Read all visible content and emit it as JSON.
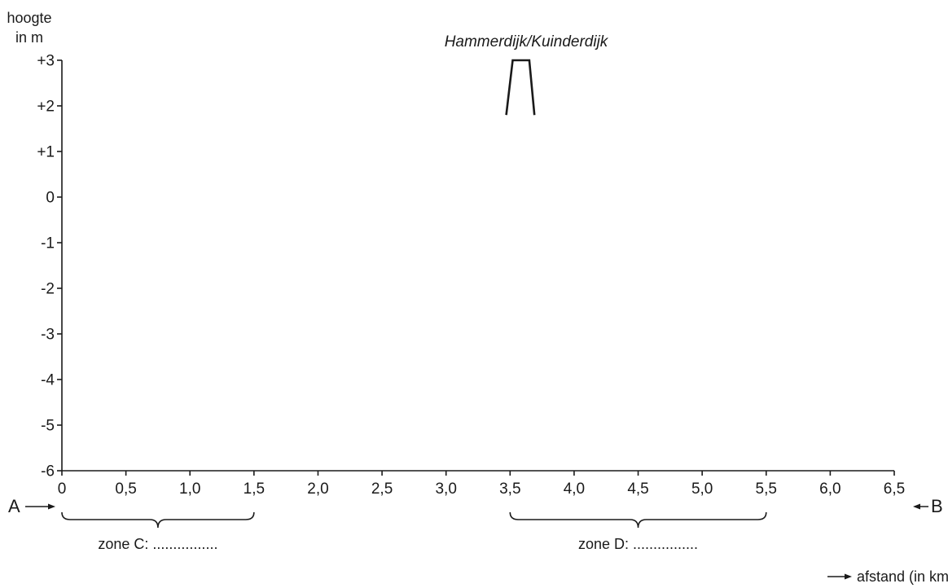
{
  "chart_data": {
    "type": "line",
    "y_axis": {
      "title_line1": "hoogte",
      "title_line2": "in m",
      "ticks": [
        {
          "value": 3,
          "label": "+3"
        },
        {
          "value": 2,
          "label": "+2"
        },
        {
          "value": 1,
          "label": "+1"
        },
        {
          "value": 0,
          "label": "0"
        },
        {
          "value": -1,
          "label": "-1"
        },
        {
          "value": -2,
          "label": "-2"
        },
        {
          "value": -3,
          "label": "-3"
        },
        {
          "value": -4,
          "label": "-4"
        },
        {
          "value": -5,
          "label": "-5"
        },
        {
          "value": -6,
          "label": "-6"
        }
      ],
      "ylim": [
        -6,
        3
      ]
    },
    "x_axis": {
      "title": "afstand (in km)",
      "ticks": [
        {
          "value": 0,
          "label": "0"
        },
        {
          "value": 0.5,
          "label": "0,5"
        },
        {
          "value": 1.0,
          "label": "1,0"
        },
        {
          "value": 1.5,
          "label": "1,5"
        },
        {
          "value": 2.0,
          "label": "2,0"
        },
        {
          "value": 2.5,
          "label": "2,5"
        },
        {
          "value": 3.0,
          "label": "3,0"
        },
        {
          "value": 3.5,
          "label": "3,5"
        },
        {
          "value": 4.0,
          "label": "4,0"
        },
        {
          "value": 4.5,
          "label": "4,5"
        },
        {
          "value": 5.0,
          "label": "5,0"
        },
        {
          "value": 5.5,
          "label": "5,5"
        },
        {
          "value": 6.0,
          "label": "6,0"
        },
        {
          "value": 6.5,
          "label": "6,5"
        }
      ],
      "xlim": [
        0,
        6.5
      ]
    },
    "dike": {
      "label": "Hammerdijk/Kuinderdijk",
      "profile": [
        {
          "x": 3.47,
          "y": 1.8
        },
        {
          "x": 3.52,
          "y": 3.0
        },
        {
          "x": 3.65,
          "y": 3.0
        },
        {
          "x": 3.69,
          "y": 1.8
        }
      ]
    },
    "markers": {
      "start": "A",
      "end": "B"
    },
    "zones": [
      {
        "label": "zone C: ................",
        "from": 0.0,
        "to": 1.5
      },
      {
        "label": "zone D: ................",
        "from": 3.5,
        "to": 5.5
      }
    ]
  }
}
